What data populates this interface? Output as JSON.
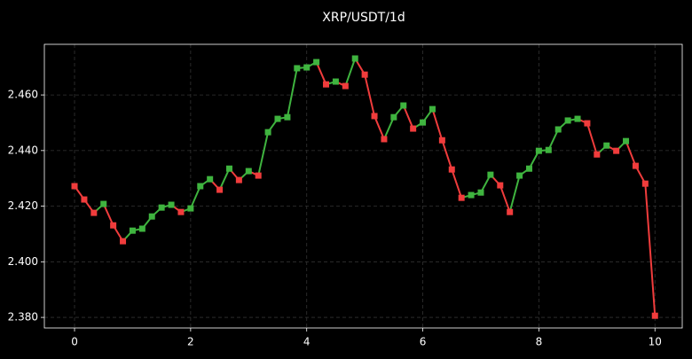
{
  "chart_data": {
    "type": "line",
    "title": "XRP/USDT/1d",
    "x": [
      0,
      0.1667,
      0.3333,
      0.5,
      0.6667,
      0.8333,
      1,
      1.1667,
      1.3333,
      1.5,
      1.6667,
      1.8333,
      2,
      2.1667,
      2.3333,
      2.5,
      2.6667,
      2.8333,
      3,
      3.1667,
      3.3333,
      3.5,
      3.6667,
      3.8333,
      4,
      4.1667,
      4.3333,
      4.5,
      4.6667,
      4.8333,
      5,
      5.1667,
      5.3333,
      5.5,
      5.6667,
      5.8333,
      6,
      6.1667,
      6.3333,
      6.5,
      6.6667,
      6.8333,
      7,
      7.1667,
      7.3333,
      7.5,
      7.6667,
      7.8333,
      8,
      8.1667,
      8.3333,
      8.5,
      8.6667,
      8.8333,
      9,
      9.1667,
      9.3333,
      9.5,
      9.6667,
      9.8333,
      10
    ],
    "values": [
      2.4272,
      2.4224,
      2.4176,
      2.4208,
      2.4131,
      2.4074,
      2.4112,
      2.4119,
      2.4163,
      2.4195,
      2.4205,
      2.4179,
      2.4192,
      2.4272,
      2.4297,
      2.4259,
      2.4335,
      2.4294,
      2.4326,
      2.431,
      2.4466,
      2.4514,
      2.452,
      2.4696,
      2.4699,
      2.4718,
      2.4638,
      2.4648,
      2.4632,
      2.4731,
      2.4673,
      2.4524,
      2.4441,
      2.452,
      2.4562,
      2.4479,
      2.4501,
      2.4549,
      2.4437,
      2.4332,
      2.423,
      2.424,
      2.4249,
      2.4313,
      2.4275,
      2.4179,
      2.431,
      2.4335,
      2.4399,
      2.4402,
      2.4476,
      2.4508,
      2.4514,
      2.4498,
      2.4386,
      2.4418,
      2.4399,
      2.4434,
      2.4345,
      2.4281,
      2.3806
    ],
    "up_color": "#3fb43f",
    "down_color": "#f03c3c",
    "xlim": [
      -0.52,
      10.47
    ],
    "ylim": [
      2.3762,
      2.4782
    ],
    "xticks": [
      0,
      2,
      4,
      6,
      8,
      10
    ],
    "yticks": [
      {
        "value": 2.38,
        "label": "2.380"
      },
      {
        "value": 2.4,
        "label": "2.400"
      },
      {
        "value": 2.42,
        "label": "2.420"
      },
      {
        "value": 2.44,
        "label": "2.440"
      },
      {
        "value": 2.46,
        "label": "2.460"
      }
    ],
    "grid": true
  }
}
